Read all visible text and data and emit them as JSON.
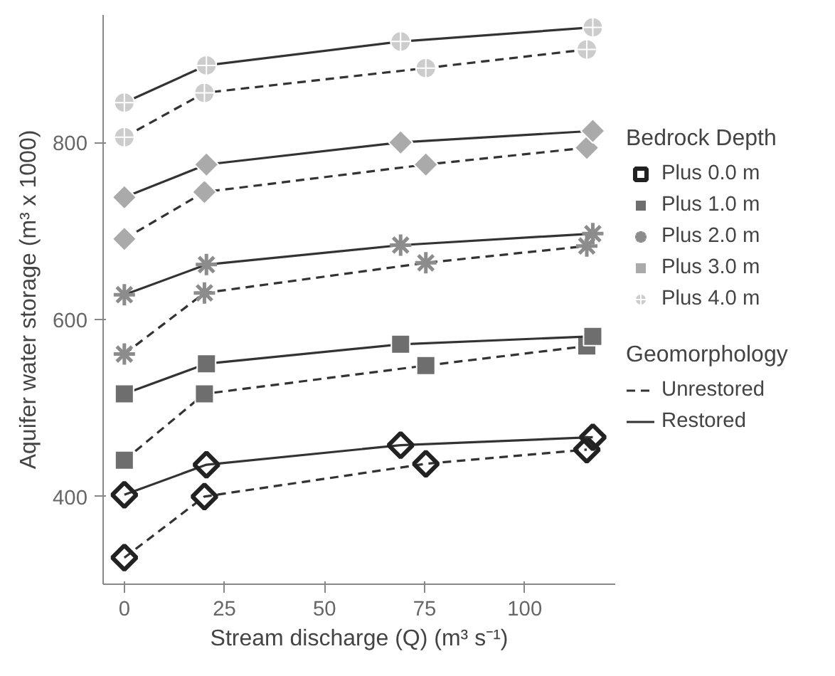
{
  "chart_data": {
    "type": "line",
    "xlabel": "Stream discharge (Q) (m³ s⁻¹)",
    "ylabel": "Aquifer water storage (m³ x 1000)",
    "legend_title": [
      "Bedrock Depth",
      "Geomorphology"
    ],
    "legend": "right",
    "grid": false,
    "annotations": [
      "Unrestored",
      "Restored"
    ],
    "xlim": [
      -5.3,
      122.6
    ],
    "ylim": [
      301,
      944
    ],
    "xticks": [
      0,
      25,
      50,
      75,
      100
    ],
    "yticks": [
      400,
      600,
      800
    ],
    "series": [
      {
        "name": "Plus 0.0 m",
        "line_style": "dashed",
        "marker": "diamond",
        "color": "#222222",
        "x": [
          0,
          20,
          75.3,
          115.5
        ],
        "values": [
          331,
          400,
          437,
          453
        ]
      },
      {
        "line_style": "solid",
        "marker": "diamond",
        "color": "#222222",
        "x": [
          0,
          20.5,
          69,
          117
        ],
        "values": [
          402,
          436,
          458,
          467
        ]
      },
      {
        "name": "Plus 1.0 m",
        "line_style": "dashed",
        "marker": "square",
        "color": "#6e6e6e",
        "x": [
          0,
          20,
          75.3,
          115.5
        ],
        "values": [
          441,
          516,
          548,
          570
        ]
      },
      {
        "line_style": "solid",
        "marker": "square",
        "color": "#6e6e6e",
        "x": [
          0,
          20.5,
          69,
          117
        ],
        "values": [
          516,
          550,
          572,
          581
        ]
      },
      {
        "name": "Plus 2.0 m",
        "line_style": "dashed",
        "marker": "cross",
        "color": "#8c8c8c",
        "x": [
          0,
          20,
          75.3,
          115.5
        ],
        "values": [
          561,
          630,
          664,
          683
        ]
      },
      {
        "line_style": "solid",
        "marker": "cross",
        "color": "#8c8c8c",
        "x": [
          0,
          20.5,
          69,
          117
        ],
        "values": [
          628,
          662,
          684,
          697
        ]
      },
      {
        "name": "Plus 3.0 m",
        "line_style": "dashed",
        "marker": "diamond",
        "color": "#aaaaaa",
        "x": [
          0,
          20,
          75.3,
          115.5
        ],
        "values": [
          691,
          744,
          775,
          794
        ]
      },
      {
        "line_style": "solid",
        "marker": "diamond",
        "color": "#aaaaaa",
        "x": [
          0,
          20.5,
          69,
          117
        ],
        "values": [
          738,
          775,
          800,
          813
        ]
      },
      {
        "name": "Plus 4.0 m",
        "line_style": "dashed",
        "marker": "circle",
        "color": "#cccccc",
        "x": [
          0,
          20,
          75.3,
          115.5
        ],
        "values": [
          806,
          856,
          884,
          905
        ]
      },
      {
        "line_style": "solid",
        "marker": "circle",
        "color": "#cccccc",
        "x": [
          0,
          20.5,
          69,
          117
        ],
        "values": [
          845,
          887,
          914,
          930
        ]
      }
    ]
  }
}
